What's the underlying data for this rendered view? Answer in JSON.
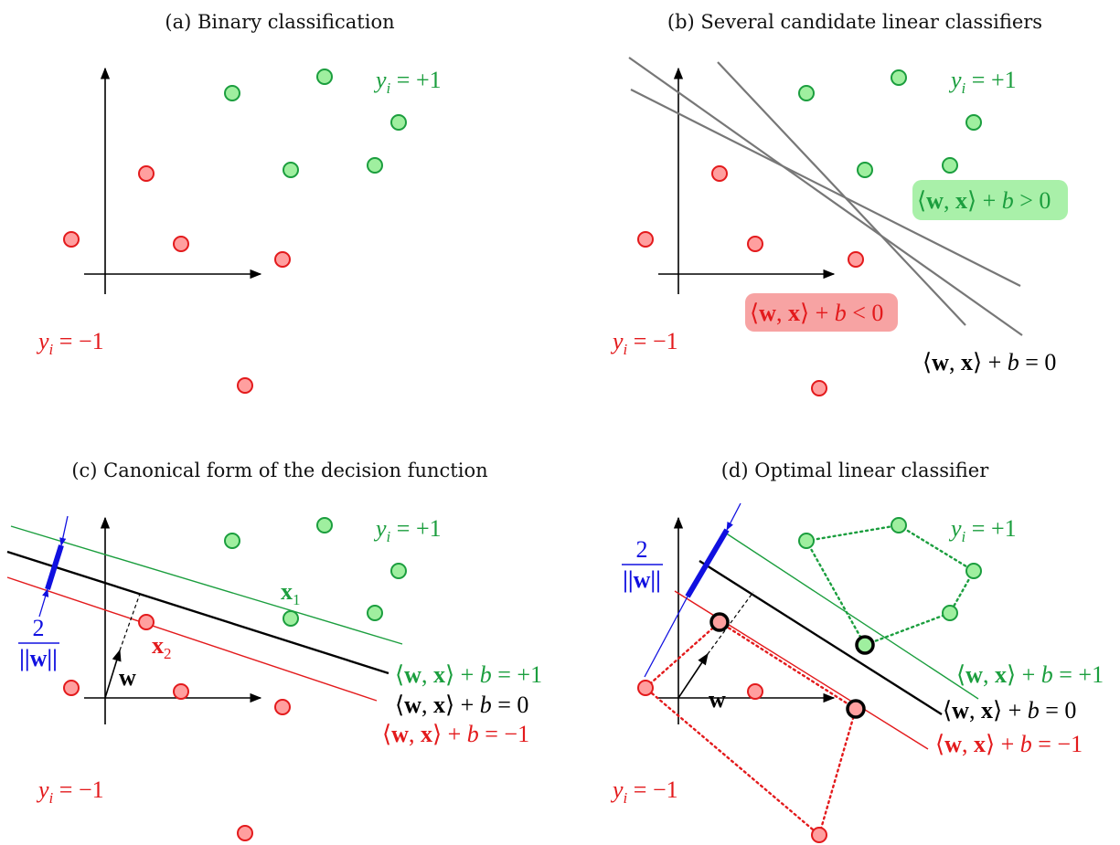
{
  "captions": {
    "a": "(a) Binary classification",
    "b": "(b) Several candidate linear classifiers",
    "c": "(c) Canonical form of the decision function",
    "d": "(d) Optimal linear classifier"
  },
  "labels": {
    "y_pos": {
      "y": "y",
      "sub": "i",
      "rest": " = +1"
    },
    "y_neg": {
      "y": "y",
      "sub": "i",
      "rest": " = −1"
    },
    "ineq_pos": {
      "lang": "⟨",
      "w": "w",
      "comma": ", ",
      "x": "x",
      "rang": "⟩",
      "plus": " + ",
      "b": "b",
      "rel": " > 0"
    },
    "ineq_neg": {
      "lang": "⟨",
      "w": "w",
      "comma": ", ",
      "x": "x",
      "rang": "⟩",
      "plus": " + ",
      "b": "b",
      "rel": " < 0"
    },
    "hyper_zero": {
      "lang": "⟨",
      "w": "w",
      "comma": ", ",
      "x": "x",
      "rang": "⟩",
      "plus": " + ",
      "b": "b",
      "rel": " = 0"
    },
    "hyper_pos": {
      "lang": "⟨",
      "w": "w",
      "comma": ", ",
      "x": "x",
      "rang": "⟩",
      "plus": " + ",
      "b": "b",
      "rel": " = +1"
    },
    "hyper_neg": {
      "lang": "⟨",
      "w": "w",
      "comma": ", ",
      "x": "x",
      "rang": "⟩",
      "plus": " + ",
      "b": "b",
      "rel": " = −1"
    },
    "vec_w": "w",
    "x1": {
      "x": "x",
      "sub": "1"
    },
    "x2": {
      "x": "x",
      "sub": "2"
    },
    "margin": {
      "num": "2",
      "den": "||w||"
    }
  },
  "colors": {
    "positive": "#1b9e3e",
    "positive_fill": "#9fef9f",
    "negative": "#e31a1c",
    "negative_fill": "#ff9f9f",
    "margin": "#1010e0",
    "candidate_line": "#777777",
    "axis": "#000000",
    "box_pos": "#a9f0a9",
    "box_neg": "#f7a3a3"
  },
  "legend": {
    "positive_class": "y_i = +1",
    "negative_class": "y_i = −1"
  }
}
